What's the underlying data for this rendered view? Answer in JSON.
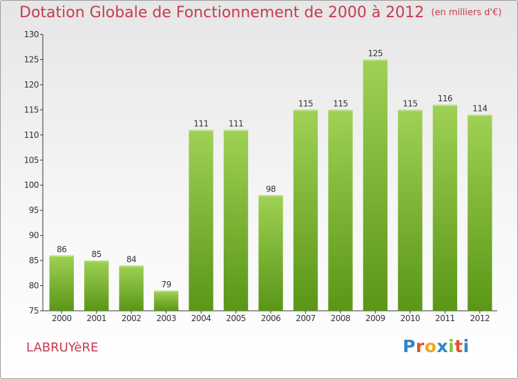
{
  "header": {
    "title": "Dotation Globale de Fonctionnement de 2000 à 2012",
    "unit": "(en milliers d'€)"
  },
  "footer": {
    "commune": "LABRUYèRE",
    "logo_letters": [
      "P",
      "r",
      "o",
      "x",
      "i",
      "t",
      "i"
    ],
    "logo_colors": [
      "#2d86c8",
      "#e4502f",
      "#f2a51d",
      "#2d86c8",
      "#8cbf3a",
      "#e4502f",
      "#2d86c8"
    ]
  },
  "colors": {
    "title": "#c63b4e",
    "bar_top": "#9fd154",
    "bar_bottom": "#5a9617",
    "axis": "#333333"
  },
  "chart_data": {
    "type": "bar",
    "categories": [
      "2000",
      "2001",
      "2002",
      "2003",
      "2004",
      "2005",
      "2006",
      "2007",
      "2008",
      "2009",
      "2010",
      "2011",
      "2012"
    ],
    "values": [
      86,
      85,
      84,
      79,
      111,
      111,
      98,
      115,
      115,
      125,
      115,
      116,
      114
    ],
    "title": "Dotation Globale de Fonctionnement de 2000 à 2012",
    "subtitle": "(en milliers d'€)",
    "ylim": [
      75,
      130
    ],
    "yticks": [
      75,
      80,
      85,
      90,
      95,
      100,
      105,
      110,
      115,
      120,
      125,
      130
    ],
    "grid": false,
    "legend": "none"
  }
}
